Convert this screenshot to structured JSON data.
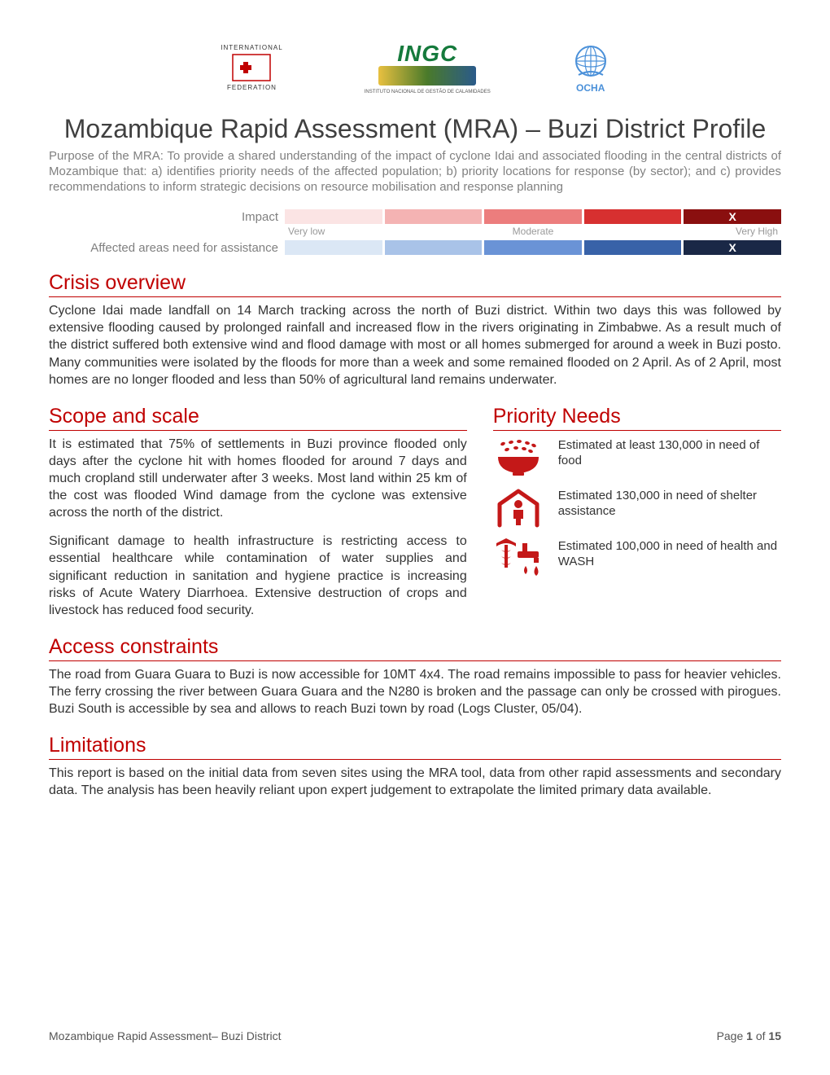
{
  "logos": {
    "ifrc_top": "INTERNATIONAL",
    "ifrc_bottom": "FEDERATION",
    "ingc_main": "INGC",
    "ingc_sub": "INSTITUTO NACIONAL DE GESTÃO DE CALAMIDADES",
    "ocha": "OCHA"
  },
  "title": "Mozambique Rapid Assessment (MRA) – Buzi District Profile",
  "purpose": "Purpose of the MRA: To provide a shared understanding of the impact of cyclone Idai and associated flooding in the central districts of Mozambique that: a) identifies priority needs of the affected population; b) priority locations for response (by sector); and c) provides recommendations to inform strategic decisions on resource mobilisation and response planning",
  "scales": {
    "impact": {
      "label": "Impact",
      "colors": [
        "#fbe4e4",
        "#f4b3b3",
        "#ec7d7d",
        "#d73030",
        "#8a0f0f"
      ],
      "marked_index": 4,
      "mark": "X"
    },
    "ticks": {
      "low": "Very low",
      "mid": "Moderate",
      "high": "Very High"
    },
    "assistance": {
      "label": "Affected areas need for assistance",
      "colors": [
        "#dbe7f5",
        "#a9c3e8",
        "#6a93d6",
        "#3862a8",
        "#1a2846"
      ],
      "marked_index": 4,
      "mark": "X"
    }
  },
  "sections": {
    "crisis": {
      "heading": "Crisis overview",
      "body": "Cyclone Idai made landfall on 14 March tracking across the north of Buzi district. Within two days this was followed by extensive flooding caused by prolonged rainfall and increased flow in the rivers originating in Zimbabwe. As a result much of the district suffered both extensive wind and flood damage with most or all homes submerged for around a week in Buzi posto. Many communities were isolated by the floods for more than a week and some remained flooded on 2 April. As of 2 April, most homes are no longer flooded and less than 50% of agricultural land remains underwater."
    },
    "scope": {
      "heading": "Scope and scale",
      "p1": "It is estimated that 75% of settlements in Buzi province flooded only days after the cyclone hit with homes flooded for around 7 days and much cropland still underwater after 3 weeks. Most land within 25 km of the cost was flooded Wind damage from the cyclone was extensive across the north of the district.",
      "p2": "Significant damage to health infrastructure is restricting access to essential healthcare while contamination of water supplies and significant reduction in sanitation and hygiene practice is increasing risks of Acute Watery Diarrhoea. Extensive destruction of crops and livestock has reduced food security."
    },
    "needs": {
      "heading": "Priority Needs",
      "items": [
        {
          "text": "Estimated at least 130,000 in need of food"
        },
        {
          "text": "Estimated 130,000 in need of shelter assistance"
        },
        {
          "text": "Estimated 100,000 in need of health and WASH"
        }
      ]
    },
    "access": {
      "heading": "Access constraints",
      "body": "The road from Guara Guara to Buzi is now accessible for 10MT 4x4. The road remains impossible to pass for heavier vehicles. The ferry crossing the river between Guara  Guara and the N280 is broken and the passage can only be crossed with pirogues. Buzi South is accessible by sea and allows to reach Buzi town by road (Logs Cluster, 05/04)."
    },
    "limitations": {
      "heading": "Limitations",
      "body": "This report is based on the initial data from seven sites using the MRA tool, data from other rapid assessments and secondary data. The analysis has been heavily reliant upon expert judgement to extrapolate the limited primary data available."
    }
  },
  "footer": {
    "left": "Mozambique Rapid Assessment– Buzi District",
    "page_label": "Page ",
    "page_num": "1",
    "of_label": " of ",
    "page_total": "15"
  },
  "icon_color": "#c41818"
}
